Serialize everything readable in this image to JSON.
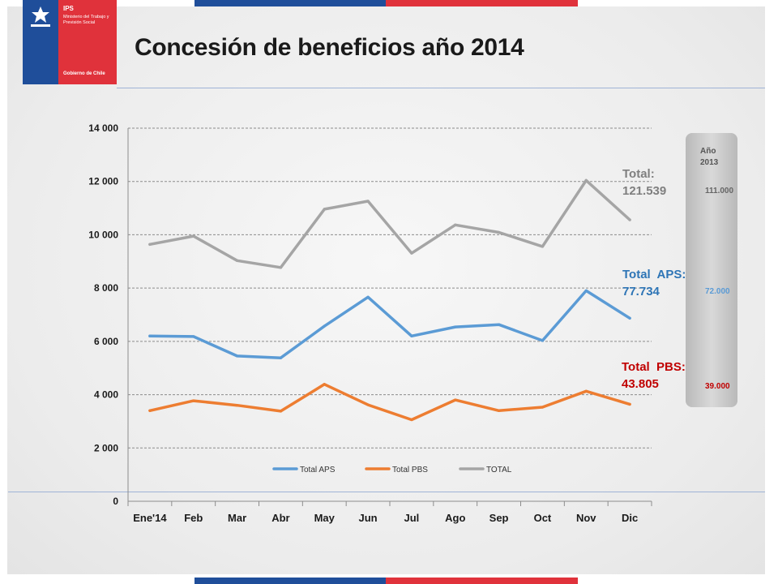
{
  "logo": {
    "name": "IPS",
    "ministry": "Ministerio del Trabajo y Previsión Social",
    "government": "Gobierno de Chile"
  },
  "title": "Concesión de beneficios año 2014",
  "annotations": {
    "total_label": "Total:",
    "total_value": "121.539",
    "aps_label": "Total  APS:",
    "aps_value": "77.734",
    "pbs_label": "Total  PBS:",
    "pbs_value": "43.805"
  },
  "side_panel": {
    "year_label": "Año 2013",
    "total_value": "111.000",
    "aps_value": "72.000",
    "pbs_value": "39.000"
  },
  "colors": {
    "aps": "#5b9bd5",
    "pbs": "#ed7d31",
    "total": "#a5a5a5",
    "aps_text": "#2e75b6",
    "pbs_text": "#c00000",
    "brand_blue": "#1f4e9a",
    "brand_red": "#e0323b"
  },
  "chart_data": {
    "type": "line",
    "categories": [
      "Ene'14",
      "Feb",
      "Mar",
      "Abr",
      "May",
      "Jun",
      "Jul",
      "Ago",
      "Sep",
      "Oct",
      "Nov",
      "Dic"
    ],
    "series": [
      {
        "name": "Total APS",
        "values": [
          6200,
          6180,
          5450,
          5380,
          6570,
          7660,
          6200,
          6540,
          6630,
          6030,
          7900,
          6870
        ]
      },
      {
        "name": "Total PBS",
        "values": [
          3400,
          3770,
          3600,
          3380,
          4390,
          3620,
          3060,
          3800,
          3400,
          3530,
          4130,
          3640
        ]
      },
      {
        "name": "TOTAL",
        "values": [
          9640,
          9950,
          9030,
          8770,
          10960,
          11260,
          9310,
          10370,
          10090,
          9560,
          12040,
          10560
        ]
      }
    ],
    "y_ticks": [
      "0",
      "2 000",
      "4 000",
      "6 000",
      "8 000",
      "10 000",
      "12 000",
      "14 000"
    ],
    "ylim": [
      0,
      14000
    ],
    "grid": true,
    "legend_position": "bottom"
  }
}
